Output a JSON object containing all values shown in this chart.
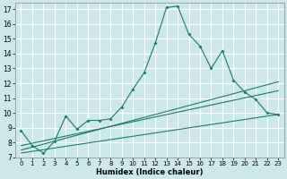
{
  "xlabel": "Humidex (Indice chaleur)",
  "ylabel": "",
  "bg_color": "#cce8e8",
  "line_color": "#1a7a6e",
  "grid_color": "#ffffff",
  "xlim": [
    -0.5,
    23.5
  ],
  "ylim": [
    7,
    17.4
  ],
  "yticks": [
    7,
    8,
    9,
    10,
    11,
    12,
    13,
    14,
    15,
    16,
    17
  ],
  "xticks": [
    0,
    1,
    2,
    3,
    4,
    5,
    6,
    7,
    8,
    9,
    10,
    11,
    12,
    13,
    14,
    15,
    16,
    17,
    18,
    19,
    20,
    21,
    22,
    23
  ],
  "line1_x": [
    0,
    1,
    2,
    3,
    4,
    5,
    6,
    7,
    8,
    9,
    10,
    11,
    12,
    13,
    14,
    15,
    16,
    17,
    18,
    19,
    20,
    21,
    22,
    23
  ],
  "line1_y": [
    8.8,
    7.8,
    7.3,
    8.1,
    9.8,
    8.9,
    9.5,
    9.5,
    9.6,
    10.4,
    11.6,
    12.7,
    14.7,
    17.1,
    17.2,
    15.3,
    14.5,
    13.0,
    14.2,
    12.2,
    11.4,
    10.9,
    10.0,
    9.9
  ],
  "line2_x": [
    0,
    23
  ],
  "line2_y": [
    7.8,
    11.5
  ],
  "line3_x": [
    0,
    23
  ],
  "line3_y": [
    7.5,
    12.1
  ],
  "line4_x": [
    0,
    23
  ],
  "line4_y": [
    7.3,
    9.9
  ]
}
